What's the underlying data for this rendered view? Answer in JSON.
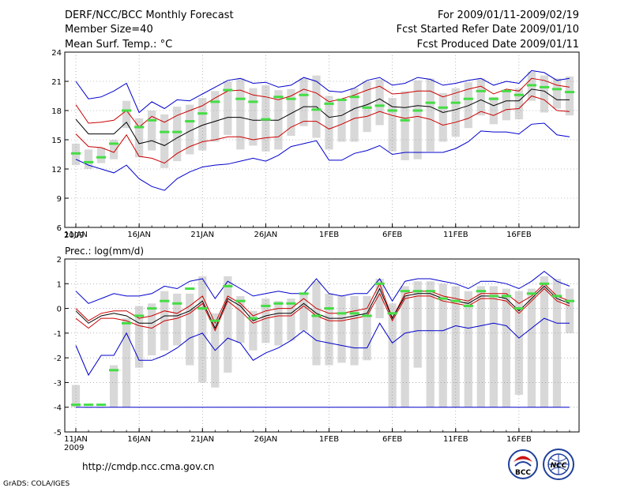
{
  "header": {
    "title": "DERF/NCC/BCC Monthly Forecast",
    "member_size": "Member Size=40",
    "variable": "Mean Surf. Temp.: °C",
    "period": "For 2009/01/11-2009/02/19",
    "started": "Fcst Started Refer Date 2009/01/10",
    "produced": "Fcst Produced Date 2009/01/11"
  },
  "footer": {
    "url": "http://cmdp.ncc.cma.gov.cn",
    "grads": "GrADS: COLA/IGES",
    "logo_bcc": "BCC",
    "logo_ncc": "NCC"
  },
  "colors": {
    "max_min": "#0000cc",
    "spread": "#cc0000",
    "mean": "#000000",
    "obs": "#44dd44",
    "box": "#d8d8d8"
  },
  "chart_data": [
    {
      "type": "line",
      "title": "Mean Surf. Temp.: °C",
      "days": 40,
      "xticks": [
        "11JAN",
        "16JAN",
        "21JAN",
        "26JAN",
        "1FEB",
        "6FEB",
        "11FEB",
        "16FEB"
      ],
      "xtick_year": "2009",
      "ylim": [
        6,
        24
      ],
      "yticks": [
        "6",
        "9",
        "12",
        "15",
        "18",
        "21",
        "24"
      ],
      "series": [
        {
          "name": "max",
          "values": [
            21.0,
            19.2,
            19.4,
            20.0,
            20.8,
            17.8,
            18.9,
            18.2,
            19.1,
            19.0,
            19.7,
            20.4,
            21.1,
            21.3,
            20.8,
            20.9,
            20.4,
            20.6,
            21.4,
            21.0,
            20.0,
            19.9,
            20.3,
            21.1,
            21.4,
            20.6,
            20.8,
            21.4,
            21.2,
            20.6,
            20.8,
            21.1,
            21.3,
            20.6,
            21.0,
            20.8,
            22.1,
            21.9,
            21.1,
            21.3
          ]
        },
        {
          "name": "p75",
          "values": [
            18.6,
            16.7,
            16.8,
            17.0,
            18.0,
            16.3,
            17.4,
            16.8,
            17.5,
            18.0,
            18.5,
            19.3,
            20.0,
            20.1,
            19.6,
            19.4,
            19.1,
            19.5,
            20.2,
            19.8,
            18.9,
            19.2,
            19.6,
            20.1,
            20.5,
            19.7,
            19.8,
            20.0,
            20.0,
            19.4,
            19.8,
            20.2,
            20.5,
            19.7,
            20.2,
            20.0,
            21.3,
            21.1,
            20.6,
            20.4
          ]
        },
        {
          "name": "mean",
          "values": [
            17.1,
            15.6,
            15.6,
            15.6,
            16.8,
            14.6,
            14.9,
            14.4,
            15.2,
            15.9,
            16.5,
            16.9,
            17.3,
            17.3,
            17.0,
            17.0,
            17.0,
            17.7,
            18.4,
            18.4,
            17.3,
            17.5,
            18.2,
            18.6,
            19.2,
            18.4,
            18.3,
            18.5,
            18.4,
            17.8,
            18.1,
            18.5,
            19.1,
            18.5,
            19.0,
            19.0,
            20.2,
            20.0,
            19.1,
            19.1
          ]
        },
        {
          "name": "p25",
          "values": [
            15.6,
            14.3,
            14.2,
            13.7,
            15.5,
            13.3,
            13.1,
            12.6,
            13.6,
            14.3,
            14.8,
            15.0,
            15.3,
            15.3,
            15.0,
            15.2,
            15.3,
            16.3,
            16.9,
            16.9,
            16.1,
            16.6,
            17.2,
            17.4,
            17.9,
            17.5,
            17.2,
            17.4,
            17.1,
            16.5,
            16.8,
            17.2,
            17.9,
            17.5,
            18.1,
            18.2,
            19.5,
            19.1,
            18.0,
            17.9
          ]
        },
        {
          "name": "min",
          "values": [
            13.0,
            12.4,
            12.0,
            11.6,
            12.4,
            11.0,
            10.2,
            9.8,
            11.0,
            11.7,
            12.2,
            12.4,
            12.5,
            12.8,
            13.1,
            12.8,
            13.4,
            14.3,
            14.6,
            14.9,
            12.9,
            12.9,
            13.6,
            13.9,
            14.4,
            13.5,
            13.7,
            13.7,
            13.7,
            13.7,
            14.1,
            14.8,
            15.9,
            15.8,
            15.8,
            15.6,
            16.6,
            16.7,
            15.5,
            15.3
          ]
        }
      ],
      "boxes": {
        "top": [
          14.6,
          14.0,
          14.2,
          15.0,
          19.0,
          17.2,
          18.0,
          17.6,
          18.4,
          18.6,
          19.3,
          20.0,
          21.0,
          21.3,
          20.3,
          20.6,
          20.1,
          20.2,
          21.3,
          21.6,
          19.5,
          19.0,
          20.3,
          21.0,
          21.2,
          19.3,
          20.0,
          21.1,
          21.3,
          19.8,
          20.3,
          20.9,
          21.3,
          19.4,
          20.1,
          20.3,
          22.0,
          21.6,
          21.3,
          21.5
        ],
        "bottom": [
          12.4,
          12.0,
          12.6,
          13.0,
          16.2,
          13.2,
          13.9,
          12.1,
          12.8,
          13.5,
          13.9,
          14.8,
          15.5,
          14.0,
          14.4,
          13.8,
          14.0,
          15.4,
          16.4,
          15.2,
          14.0,
          14.8,
          14.8,
          15.8,
          16.5,
          13.8,
          12.9,
          13.0,
          13.8,
          14.8,
          15.3,
          16.2,
          17.5,
          16.6,
          17.0,
          17.1,
          19.0,
          17.8,
          18.2,
          17.5
        ]
      },
      "observed": [
        13.6,
        12.7,
        13.2,
        14.6,
        18.0,
        16.3,
        17.0,
        15.8,
        15.8,
        16.9,
        17.7,
        18.9,
        20.1,
        19.2,
        18.9,
        17.1,
        19.4,
        19.2,
        19.6,
        18.1,
        18.7,
        19.1,
        19.4,
        18.3,
        18.5,
        18.0,
        17.0,
        18.0,
        18.8,
        18.3,
        18.8,
        19.2,
        20.0,
        19.2,
        20.0,
        19.6,
        20.6,
        20.4,
        20.2,
        19.9
      ]
    },
    {
      "type": "line",
      "title": "Prec.: log(mm/d)",
      "days": 40,
      "xticks": [
        "11JAN",
        "16JAN",
        "21JAN",
        "26JAN",
        "1FEB",
        "6FEB",
        "11FEB",
        "16FEB"
      ],
      "xtick_year": "2009",
      "ylim": [
        -5,
        2
      ],
      "yticks": [
        "-5",
        "-4",
        "-3",
        "-2",
        "-1",
        "0",
        "1",
        "2"
      ],
      "series": [
        {
          "name": "max",
          "values": [
            0.7,
            0.2,
            0.4,
            0.6,
            0.5,
            0.5,
            0.6,
            0.9,
            0.8,
            1.1,
            1.2,
            0.4,
            1.1,
            0.8,
            0.5,
            0.6,
            0.7,
            0.6,
            0.6,
            1.2,
            0.6,
            0.5,
            0.6,
            0.6,
            1.2,
            0.3,
            1.1,
            1.2,
            1.2,
            1.1,
            1.0,
            0.8,
            1.1,
            1.1,
            1.0,
            0.8,
            1.1,
            1.5,
            1.1,
            0.9
          ]
        },
        {
          "name": "p75",
          "values": [
            0.0,
            -0.5,
            -0.2,
            -0.1,
            -0.1,
            -0.4,
            -0.3,
            -0.1,
            -0.2,
            0.1,
            0.5,
            -0.6,
            0.5,
            0.2,
            -0.3,
            -0.1,
            0.0,
            0.0,
            0.4,
            0.0,
            -0.2,
            -0.2,
            -0.1,
            0.0,
            1.0,
            -0.4,
            0.6,
            0.7,
            0.7,
            0.5,
            0.4,
            0.3,
            0.6,
            0.6,
            0.6,
            0.2,
            0.5,
            1.0,
            0.5,
            0.3
          ]
        },
        {
          "name": "mean",
          "values": [
            -0.1,
            -0.6,
            -0.3,
            -0.2,
            -0.3,
            -0.6,
            -0.6,
            -0.3,
            -0.3,
            -0.1,
            0.3,
            -0.8,
            0.4,
            0.1,
            -0.5,
            -0.3,
            -0.2,
            -0.2,
            0.2,
            -0.2,
            -0.4,
            -0.4,
            -0.3,
            -0.2,
            0.8,
            -0.4,
            0.5,
            0.6,
            0.6,
            0.4,
            0.3,
            0.2,
            0.5,
            0.5,
            0.4,
            -0.1,
            0.4,
            0.9,
            0.4,
            0.2
          ]
        },
        {
          "name": "p25",
          "values": [
            -0.4,
            -0.8,
            -0.4,
            -0.4,
            -0.5,
            -0.7,
            -0.8,
            -0.5,
            -0.4,
            -0.2,
            0.2,
            -0.9,
            0.3,
            -0.1,
            -0.6,
            -0.4,
            -0.3,
            -0.3,
            0.1,
            -0.3,
            -0.5,
            -0.5,
            -0.4,
            -0.3,
            0.6,
            -0.5,
            0.4,
            0.5,
            0.5,
            0.3,
            0.2,
            0.1,
            0.4,
            0.4,
            0.3,
            -0.2,
            0.3,
            0.8,
            0.3,
            0.1
          ]
        },
        {
          "name": "min",
          "values": [
            -1.5,
            -2.7,
            -1.9,
            -1.9,
            -1.0,
            -2.1,
            -2.1,
            -1.9,
            -1.6,
            -1.2,
            -1.0,
            -1.7,
            -1.2,
            -1.4,
            -2.1,
            -1.8,
            -1.6,
            -1.3,
            -0.9,
            -1.3,
            -1.4,
            -1.5,
            -1.6,
            -1.6,
            -0.6,
            -1.4,
            -1.0,
            -0.9,
            -0.9,
            -0.9,
            -0.7,
            -0.8,
            -0.7,
            -0.6,
            -0.7,
            -1.2,
            -0.8,
            -0.4,
            -0.6,
            -0.6
          ]
        }
      ],
      "boxes": {
        "top": [
          -3.1,
          -4.0,
          -4.0,
          -2.3,
          -0.4,
          0.1,
          0.2,
          0.7,
          0.6,
          0.6,
          1.3,
          -0.2,
          1.3,
          0.5,
          -0.1,
          0.4,
          0.3,
          0.4,
          0.6,
          1.1,
          0.6,
          0.5,
          0.5,
          0.5,
          1.2,
          0.2,
          0.9,
          1.1,
          1.1,
          1.0,
          0.9,
          0.7,
          0.9,
          0.9,
          0.8,
          0.7,
          0.8,
          1.3,
          1.2,
          0.8
        ],
        "bottom": [
          -4.0,
          -4.0,
          -4.0,
          -4.0,
          -4.0,
          -2.4,
          -1.9,
          -1.7,
          -1.5,
          -2.3,
          -3.0,
          -3.2,
          -2.6,
          -1.4,
          -1.7,
          -1.4,
          -1.5,
          -1.3,
          -0.9,
          -2.3,
          -2.3,
          -2.2,
          -2.3,
          -2.1,
          -0.4,
          -4.0,
          -4.0,
          -2.4,
          -4.0,
          -4.0,
          -4.0,
          -4.0,
          -4.0,
          -4.0,
          -4.0,
          -3.5,
          -4.0,
          -4.0,
          -4.0,
          -1.0
        ]
      },
      "observed": [
        -3.9,
        -3.9,
        -3.9,
        -2.5,
        -0.6,
        -0.3,
        0.0,
        0.3,
        0.2,
        0.8,
        0.0,
        -0.5,
        0.9,
        0.3,
        -0.4,
        0.1,
        0.2,
        0.2,
        0.6,
        -0.3,
        0.0,
        -0.2,
        -0.2,
        -0.3,
        1.0,
        -0.2,
        0.7,
        0.7,
        0.7,
        0.4,
        0.3,
        0.1,
        0.7,
        0.5,
        0.5,
        0.0,
        0.6,
        1.0,
        0.5,
        0.3
      ],
      "floor_line": -4
    }
  ]
}
